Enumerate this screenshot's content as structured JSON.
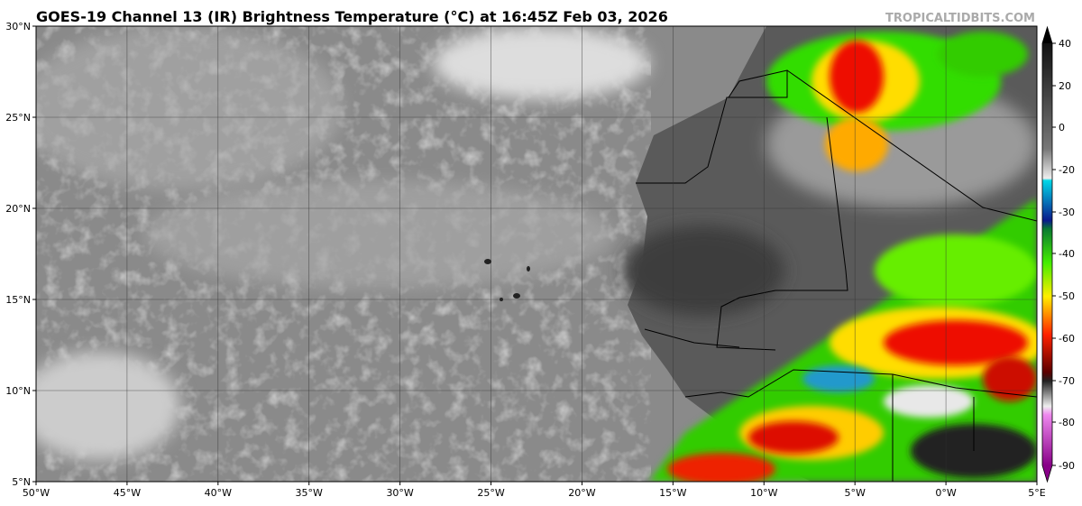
{
  "header": {
    "title": "GOES-19 Channel 13 (IR) Brightness Temperature (°C) at 16:45Z Feb 03, 2026",
    "source": "TROPICALTIDBITS.COM"
  },
  "map": {
    "lon_labels": [
      "50°W",
      "45°W",
      "40°W",
      "35°W",
      "30°W",
      "25°W",
      "20°W",
      "15°W",
      "10°W",
      "5°W",
      "0°W",
      "5°E"
    ],
    "lat_labels": [
      "30°N",
      "25°N",
      "20°N",
      "15°N",
      "10°N",
      "5°N"
    ]
  },
  "colorbar": {
    "ticks": [
      40,
      20,
      0,
      -20,
      -30,
      -40,
      -50,
      -60,
      -70,
      -80,
      -90
    ]
  }
}
